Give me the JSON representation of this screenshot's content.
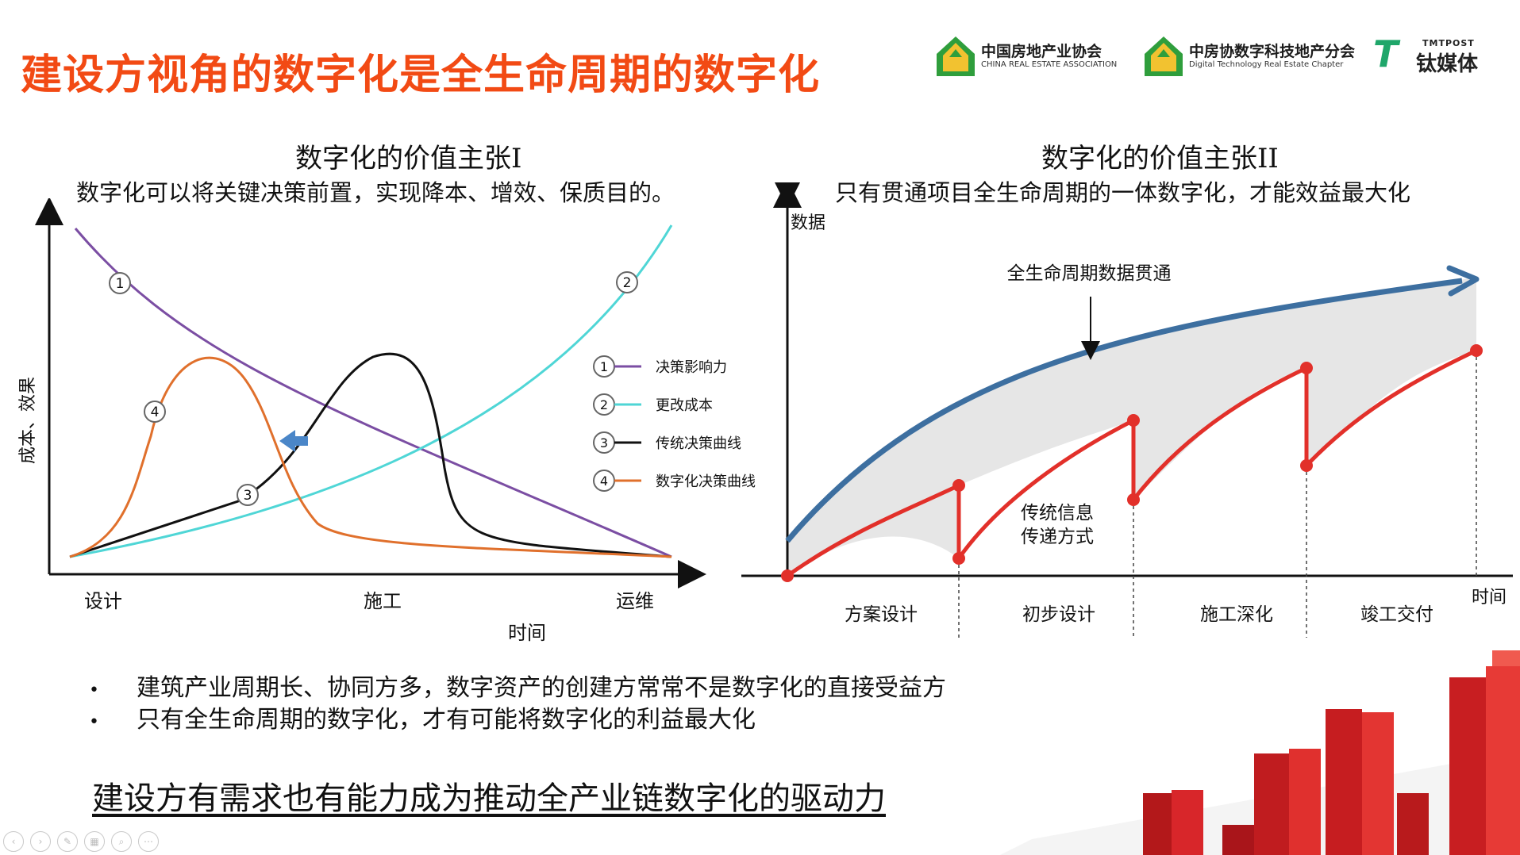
{
  "header": {
    "title": "建设方视角的数字化是全生命周期的数字化",
    "logos": [
      {
        "name": "中国房地产业协会",
        "sub": "CHINA REAL ESTATE ASSOCIATION"
      },
      {
        "name": "中房协数字科技地产分会",
        "sub": "Digital Technology Real Estate Chapter"
      },
      {
        "name": "钛媒体",
        "sub": "TMTPOST",
        "mark": "T"
      }
    ]
  },
  "left_panel": {
    "title": "数字化的价值主张I",
    "subtitle": "数字化可以将关键决策前置，实现降本、增效、保质目的。",
    "chart": {
      "ylabel": "成本、效果",
      "xlabel": "时间",
      "xticks": [
        "设计",
        "施工",
        "运维"
      ],
      "legend": [
        {
          "num": "1",
          "label": "决策影响力",
          "color": "#7b4ea3"
        },
        {
          "num": "2",
          "label": "更改成本",
          "color": "#4fd6d6"
        },
        {
          "num": "3",
          "label": "传统决策曲线",
          "color": "#111111"
        },
        {
          "num": "4",
          "label": "数字化决策曲线",
          "color": "#e0702c"
        }
      ],
      "markers": [
        "1",
        "2",
        "3",
        "4"
      ],
      "arrow_color": "#4a86c8"
    }
  },
  "right_panel": {
    "title": "数字化的价值主张II",
    "subtitle": "只有贯通项目全生命周期的一体数字化，才能效益最大化",
    "chart": {
      "ylabel": "数据",
      "xlabel": "时间",
      "top_label": "全生命周期数据贯通",
      "lower_label_line1": "传统信息",
      "lower_label_line2": "传递方式",
      "phases": [
        "方案设计",
        "初步设计",
        "施工深化",
        "竣工交付"
      ],
      "blue_color": "#3d6fa0",
      "red_color": "#e2302a",
      "fill_color": "#e6e6e6"
    }
  },
  "bullets": [
    "建筑产业周期长、协同方多，数字资产的创建方常常不是数字化的直接受益方",
    "只有全生命周期的数字化，才有可能将数字化的利益最大化"
  ],
  "bullet_marker": "•",
  "conclusion": "建设方有需求也有能力成为推动全产业链数字化的驱动力"
}
